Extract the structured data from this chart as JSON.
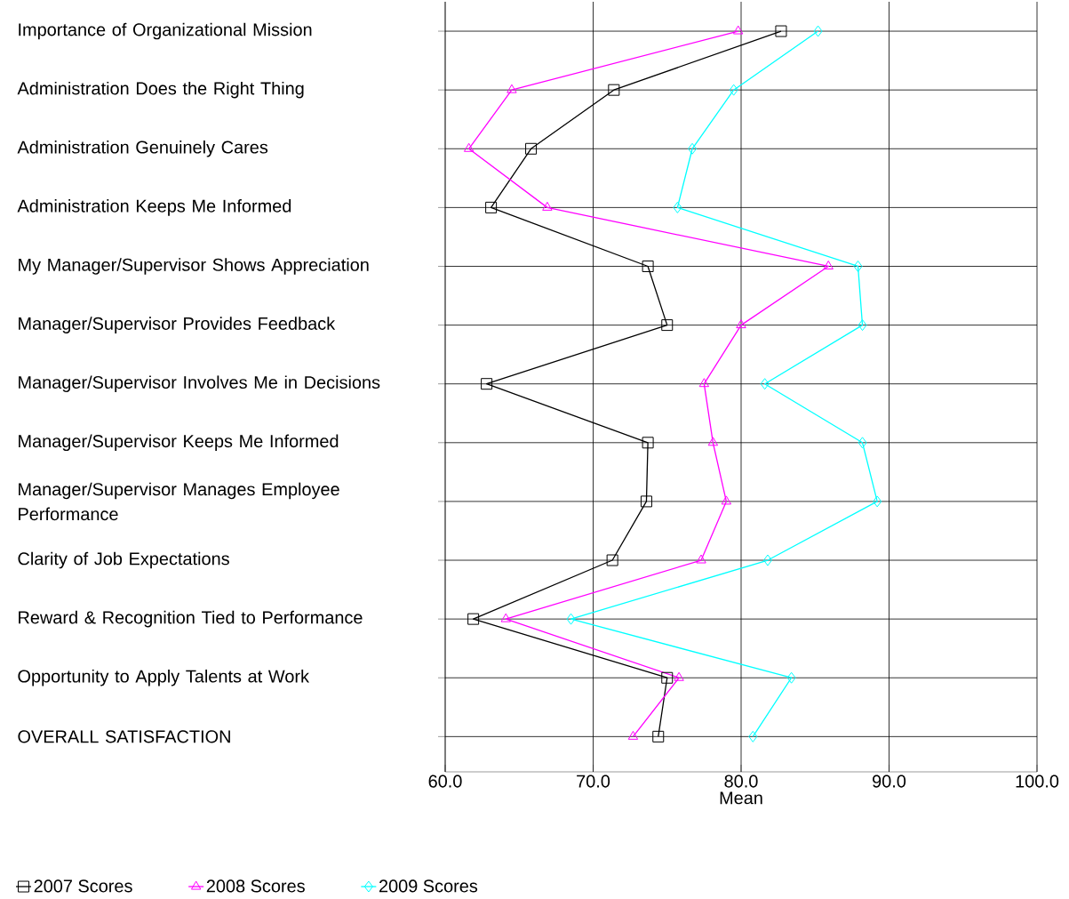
{
  "chart_data": {
    "type": "line",
    "orientation": "horizontal",
    "xlabel": "Mean",
    "categories": [
      "Importance of Organizational Mission",
      "Administration Does the Right Thing",
      "Administration Genuinely Cares",
      "Administration Keeps Me Informed",
      "My Manager/Supervisor Shows Appreciation",
      "Manager/Supervisor Provides Feedback",
      "Manager/Supervisor Involves Me in Decisions",
      "Manager/Supervisor Keeps Me Informed",
      "Manager/Supervisor Manages Employee Performance",
      "Clarity of Job Expectations",
      "Reward & Recognition Tied to Performance",
      "Opportunity to Apply Talents at Work",
      "OVERALL SATISFACTION"
    ],
    "series": [
      {
        "name": "2007 Scores",
        "color": "#000000",
        "marker": "square",
        "values": [
          82.7,
          71.4,
          65.8,
          63.1,
          73.7,
          75.0,
          62.8,
          73.7,
          73.6,
          71.3,
          61.9,
          75.0,
          74.4
        ]
      },
      {
        "name": "2008 Scores",
        "color": "#ff00ff",
        "marker": "triangle",
        "values": [
          79.8,
          64.5,
          61.6,
          66.9,
          85.9,
          80.0,
          77.5,
          78.1,
          79.0,
          77.3,
          64.1,
          75.8,
          72.7
        ]
      },
      {
        "name": "2009 Scores",
        "color": "#00ffff",
        "marker": "diamond",
        "values": [
          85.2,
          79.5,
          76.7,
          75.7,
          87.9,
          88.2,
          81.6,
          88.2,
          89.2,
          81.8,
          68.5,
          83.4,
          80.8
        ]
      }
    ],
    "xlim": [
      60,
      100
    ],
    "xticks": [
      {
        "value": 60,
        "label": "60.0"
      },
      {
        "value": 70,
        "label": "70.0"
      },
      {
        "value": 80,
        "label": "80.0"
      },
      {
        "value": 90,
        "label": "90.0"
      },
      {
        "value": 100,
        "label": "100.0"
      }
    ],
    "grid": true,
    "legend": "bottom",
    "line_style": "solid"
  }
}
